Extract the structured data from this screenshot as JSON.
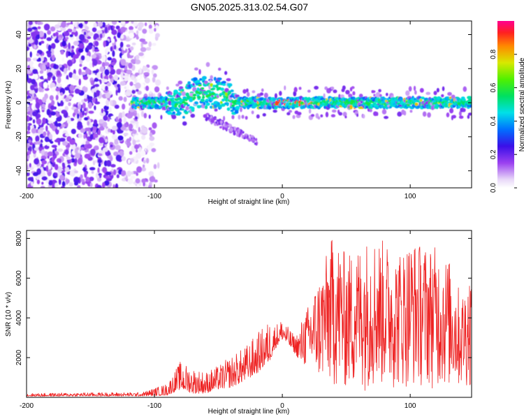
{
  "figure_title": "GN05.2025.313.02.54.G07",
  "colors": {
    "snr_line": "#ee2222",
    "background": "#ffffff",
    "axis": "#000000"
  },
  "chart_data": [
    {
      "type": "heatmap",
      "title": "",
      "xlabel": "Height of straight line (km)",
      "ylabel": "Frequency (Hz)",
      "xlim": [
        -200,
        148
      ],
      "ylim": [
        -50,
        48
      ],
      "x_ticks": [
        -200,
        -100,
        0,
        100
      ],
      "x_tick_labels": [
        "-200",
        "-100",
        "0",
        "100"
      ],
      "y_ticks": [
        -40,
        -20,
        0,
        20,
        40
      ],
      "y_tick_labels": [
        "-40",
        "-20",
        "0",
        "20",
        "40"
      ],
      "colorbar": {
        "label": "Normalized spectral amplitude",
        "range": [
          0,
          1
        ],
        "ticks": [
          0.0,
          0.2,
          0.4,
          0.6,
          0.8
        ],
        "tick_labels": [
          "0.0",
          "0.2",
          "0.4",
          "0.6",
          "0.8"
        ]
      },
      "features": {
        "noise_region_x": [
          -200,
          -95
        ],
        "noise_amplitude_range": [
          0.0,
          0.25
        ],
        "band_center_hz": 0,
        "band_start_x": -117,
        "band_half_width_hz": 3,
        "peak_amplitude_near_x": [
          -5,
          25
        ],
        "peak_amplitude": 0.9
      }
    },
    {
      "type": "line",
      "title": "",
      "xlabel": "Height of straight line (km)",
      "ylabel": "SNR (10 * v/v)",
      "xlim": [
        -200,
        148
      ],
      "ylim": [
        0,
        8400
      ],
      "x_ticks": [
        -200,
        -100,
        0,
        100
      ],
      "x_tick_labels": [
        "-200",
        "-100",
        "0",
        "100"
      ],
      "y_ticks": [
        2000,
        4000,
        6000,
        8000
      ],
      "y_tick_labels": [
        "2000",
        "4000",
        "6000",
        "8000"
      ],
      "envelope": {
        "x": [
          -200,
          -150,
          -110,
          -90,
          -80,
          -70,
          -60,
          -50,
          -40,
          -30,
          -20,
          -10,
          -5,
          0,
          5,
          10,
          20,
          30,
          40,
          50,
          60,
          70,
          80,
          90,
          100,
          110,
          120,
          130,
          140,
          148
        ],
        "low": [
          50,
          60,
          60,
          100,
          400,
          200,
          200,
          400,
          500,
          800,
          1200,
          1800,
          2500,
          2900,
          2600,
          2200,
          1200,
          700,
          400,
          300,
          300,
          400,
          400,
          400,
          500,
          500,
          400,
          400,
          400,
          500
        ],
        "high": [
          200,
          250,
          250,
          700,
          1800,
          1500,
          1300,
          1600,
          2100,
          2500,
          3200,
          3900,
          3700,
          4000,
          3500,
          3100,
          4600,
          6300,
          8300,
          7200,
          7700,
          8200,
          7900,
          7300,
          8000,
          7700,
          7600,
          7000,
          5200,
          6600
        ]
      }
    }
  ]
}
